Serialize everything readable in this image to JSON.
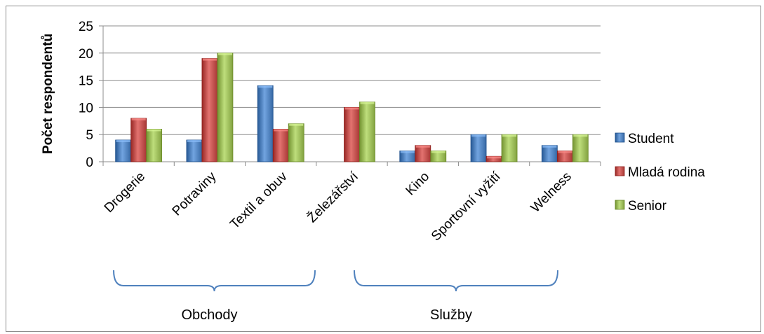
{
  "chart_data": {
    "type": "bar",
    "title": "",
    "xlabel": "",
    "ylabel": "Počet respondentů",
    "ylim": [
      0,
      25
    ],
    "yticks": [
      0,
      5,
      10,
      15,
      20,
      25
    ],
    "grid": true,
    "legend_position": "right",
    "categories": [
      "Drogerie",
      "Potraviny",
      "Textil a obuv",
      "Železářství",
      "Kino",
      "Sportovní vyžití",
      "Welness"
    ],
    "series": [
      {
        "name": "Student",
        "color": "#4f81bd",
        "values": [
          4,
          4,
          14,
          0,
          2,
          5,
          3
        ]
      },
      {
        "name": "Mladá rodina",
        "color": "#c0504d",
        "values": [
          8,
          19,
          6,
          10,
          3,
          1,
          2
        ]
      },
      {
        "name": "Senior",
        "color": "#9bbb59",
        "values": [
          6,
          20,
          7,
          11,
          2,
          5,
          5
        ]
      }
    ],
    "groups": [
      {
        "label": "Obchody",
        "categories": [
          "Drogerie",
          "Potraviny",
          "Textil a obuv",
          "Železářství"
        ]
      },
      {
        "label": "Služby",
        "categories": [
          "Kino",
          "Sportovní vyžití",
          "Welness"
        ]
      }
    ]
  }
}
